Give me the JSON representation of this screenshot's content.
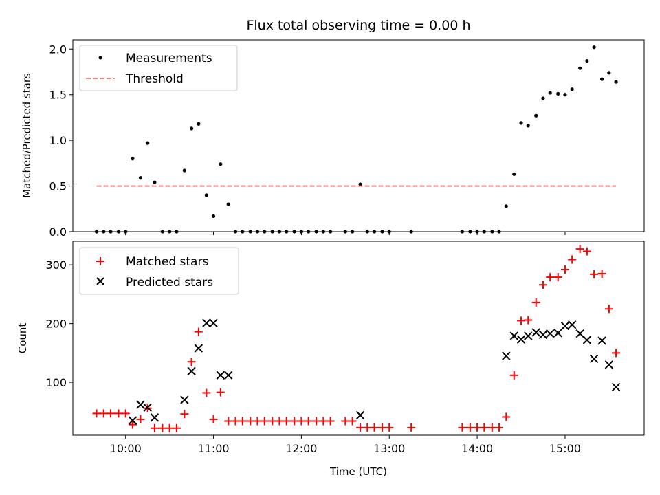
{
  "chart_data": [
    {
      "type": "scatter",
      "title": "Flux total observing time = 0.00 h",
      "ylabel": "Matched/Predicted stars",
      "xlabel": "",
      "xlim_hours": [
        9.4,
        15.9
      ],
      "ylim": [
        0,
        2.1
      ],
      "y_ticks": [
        "0.0",
        "0.5",
        "1.0",
        "1.5",
        "2.0"
      ],
      "legend_position": "top-left",
      "grid": false,
      "series": [
        {
          "name": "Measurements",
          "marker": "dot",
          "color": "#000000",
          "x_hours": [
            9.67,
            9.75,
            9.83,
            9.92,
            10.0,
            10.08,
            10.17,
            10.25,
            10.33,
            10.42,
            10.5,
            10.58,
            10.67,
            10.75,
            10.83,
            10.92,
            11.0,
            11.08,
            11.17,
            11.25,
            11.33,
            11.42,
            11.5,
            11.58,
            11.67,
            11.75,
            11.83,
            11.92,
            12.0,
            12.08,
            12.17,
            12.25,
            12.33,
            12.5,
            12.58,
            12.67,
            12.75,
            12.83,
            12.92,
            13.0,
            13.25,
            13.83,
            13.92,
            14.0,
            14.08,
            14.17,
            14.25,
            14.33,
            14.42,
            14.5,
            14.58,
            14.67,
            14.75,
            14.83,
            14.92,
            15.0,
            15.08,
            15.17,
            15.25,
            15.33,
            15.42,
            15.5,
            15.58
          ],
          "y": [
            0,
            0,
            0,
            0,
            0,
            0.8,
            0.59,
            0.97,
            0.54,
            0,
            0,
            0,
            0.67,
            1.13,
            1.18,
            0.4,
            0.17,
            0.74,
            0.3,
            0,
            0,
            0,
            0,
            0,
            0,
            0,
            0,
            0,
            0,
            0,
            0,
            0,
            0,
            0,
            0,
            0.52,
            0,
            0,
            0,
            0,
            0,
            0,
            0,
            0,
            0,
            0,
            0,
            0.28,
            0.63,
            1.19,
            1.16,
            1.27,
            1.46,
            1.52,
            1.51,
            1.5,
            1.56,
            1.79,
            1.87,
            2.02,
            1.67,
            1.74,
            1.64
          ]
        },
        {
          "name": "Threshold",
          "line": "dashed",
          "color": "#ff7f7f",
          "x_hours": [
            9.67,
            15.58
          ],
          "y": [
            0.5,
            0.5
          ]
        }
      ]
    },
    {
      "type": "scatter",
      "title": "",
      "ylabel": "Count",
      "xlabel": "Time (UTC)",
      "xlim_hours": [
        9.4,
        15.9
      ],
      "ylim": [
        10,
        340
      ],
      "y_ticks": [
        "100",
        "200",
        "300"
      ],
      "x_ticks": [
        "10:00",
        "11:00",
        "12:00",
        "13:00",
        "14:00",
        "15:00"
      ],
      "legend_position": "top-left",
      "grid": false,
      "series": [
        {
          "name": "Matched stars",
          "marker": "plus",
          "color": "#ff0000",
          "x_hours": [
            9.67,
            9.75,
            9.83,
            9.92,
            10.0,
            10.08,
            10.17,
            10.25,
            10.33,
            10.42,
            10.5,
            10.58,
            10.67,
            10.75,
            10.83,
            10.92,
            11.0,
            11.08,
            11.17,
            11.25,
            11.33,
            11.42,
            11.5,
            11.58,
            11.67,
            11.75,
            11.83,
            11.92,
            12.0,
            12.08,
            12.17,
            12.25,
            12.33,
            12.5,
            12.58,
            12.67,
            12.75,
            12.83,
            12.92,
            13.0,
            13.25,
            13.83,
            13.92,
            14.0,
            14.08,
            14.17,
            14.25,
            14.33,
            14.42,
            14.5,
            14.58,
            14.67,
            14.75,
            14.83,
            14.92,
            15.0,
            15.08,
            15.17,
            15.25,
            15.33,
            15.42,
            15.5,
            15.58
          ],
          "y": [
            47,
            47,
            47,
            47,
            47,
            28,
            37,
            56,
            22,
            22,
            22,
            22,
            46,
            135,
            186,
            82,
            37,
            83,
            34,
            34,
            34,
            34,
            34,
            34,
            34,
            34,
            34,
            34,
            34,
            34,
            34,
            34,
            34,
            34,
            34,
            23,
            23,
            23,
            23,
            23,
            23,
            23,
            23,
            23,
            23,
            23,
            23,
            41,
            112,
            205,
            206,
            236,
            266,
            279,
            279,
            292,
            309,
            327,
            323,
            284,
            285,
            225,
            150
          ]
        },
        {
          "name": "Predicted stars",
          "marker": "x",
          "color": "#000000",
          "x_hours": [
            10.08,
            10.17,
            10.25,
            10.33,
            10.67,
            10.75,
            10.83,
            10.92,
            11.0,
            11.08,
            11.17,
            12.67,
            14.33,
            14.42,
            14.5,
            14.58,
            14.67,
            14.75,
            14.83,
            14.92,
            15.0,
            15.08,
            15.17,
            15.25,
            15.33,
            15.42,
            15.5,
            15.58
          ],
          "y": [
            35,
            62,
            57,
            40,
            70,
            119,
            158,
            201,
            201,
            112,
            112,
            44,
            145,
            179,
            173,
            179,
            185,
            181,
            183,
            184,
            196,
            198,
            183,
            172,
            140,
            171,
            130,
            92
          ]
        }
      ]
    }
  ]
}
